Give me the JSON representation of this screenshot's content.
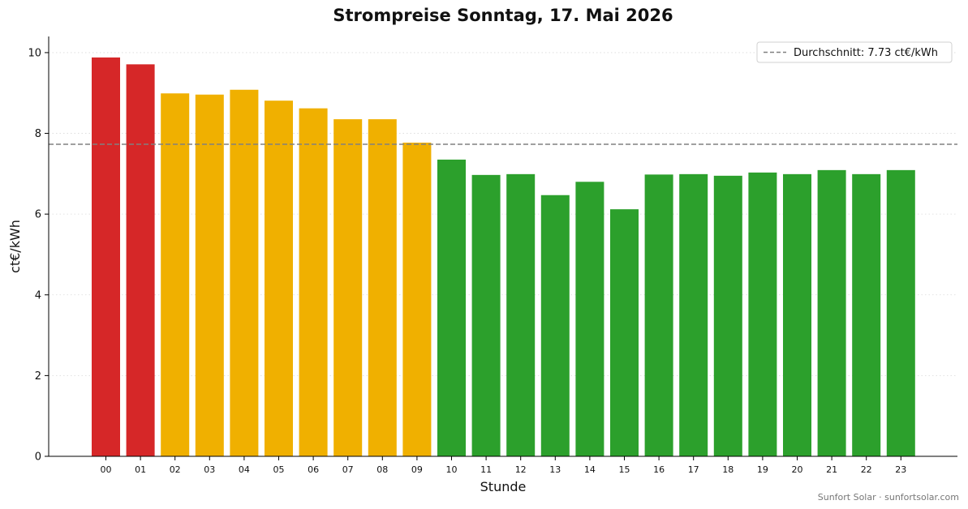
{
  "chart_data": {
    "type": "bar",
    "title": "Strompreise Sonntag, 17. Mai 2026",
    "xlabel": "Stunde",
    "ylabel": "ct€/kWh",
    "ylim": [
      0,
      10.4
    ],
    "yticks": [
      0,
      2,
      4,
      6,
      8,
      10
    ],
    "grid": "horizontal-dotted",
    "legend_position": "top-right",
    "categories": [
      "00",
      "01",
      "02",
      "03",
      "04",
      "05",
      "06",
      "07",
      "08",
      "09",
      "10",
      "11",
      "12",
      "13",
      "14",
      "15",
      "16",
      "17",
      "18",
      "19",
      "20",
      "21",
      "22",
      "23"
    ],
    "values": [
      9.88,
      9.71,
      8.99,
      8.96,
      9.08,
      8.81,
      8.62,
      8.35,
      8.35,
      7.77,
      7.35,
      6.97,
      6.99,
      6.47,
      6.8,
      6.12,
      6.98,
      6.99,
      6.95,
      7.03,
      6.99,
      7.09,
      6.99,
      7.09
    ],
    "bar_colors": [
      "#d62728",
      "#d62728",
      "#f0b000",
      "#f0b000",
      "#f0b000",
      "#f0b000",
      "#f0b000",
      "#f0b000",
      "#f0b000",
      "#f0b000",
      "#2ca02c",
      "#2ca02c",
      "#2ca02c",
      "#2ca02c",
      "#2ca02c",
      "#2ca02c",
      "#2ca02c",
      "#2ca02c",
      "#2ca02c",
      "#2ca02c",
      "#2ca02c",
      "#2ca02c",
      "#2ca02c",
      "#2ca02c"
    ],
    "average": {
      "value": 7.73,
      "legend_label": "Durchschnitt: 7.73 ct€/kWh",
      "color": "#808080"
    }
  },
  "footer": {
    "credit": "Sunfort Solar · sunfortsolar.com"
  }
}
